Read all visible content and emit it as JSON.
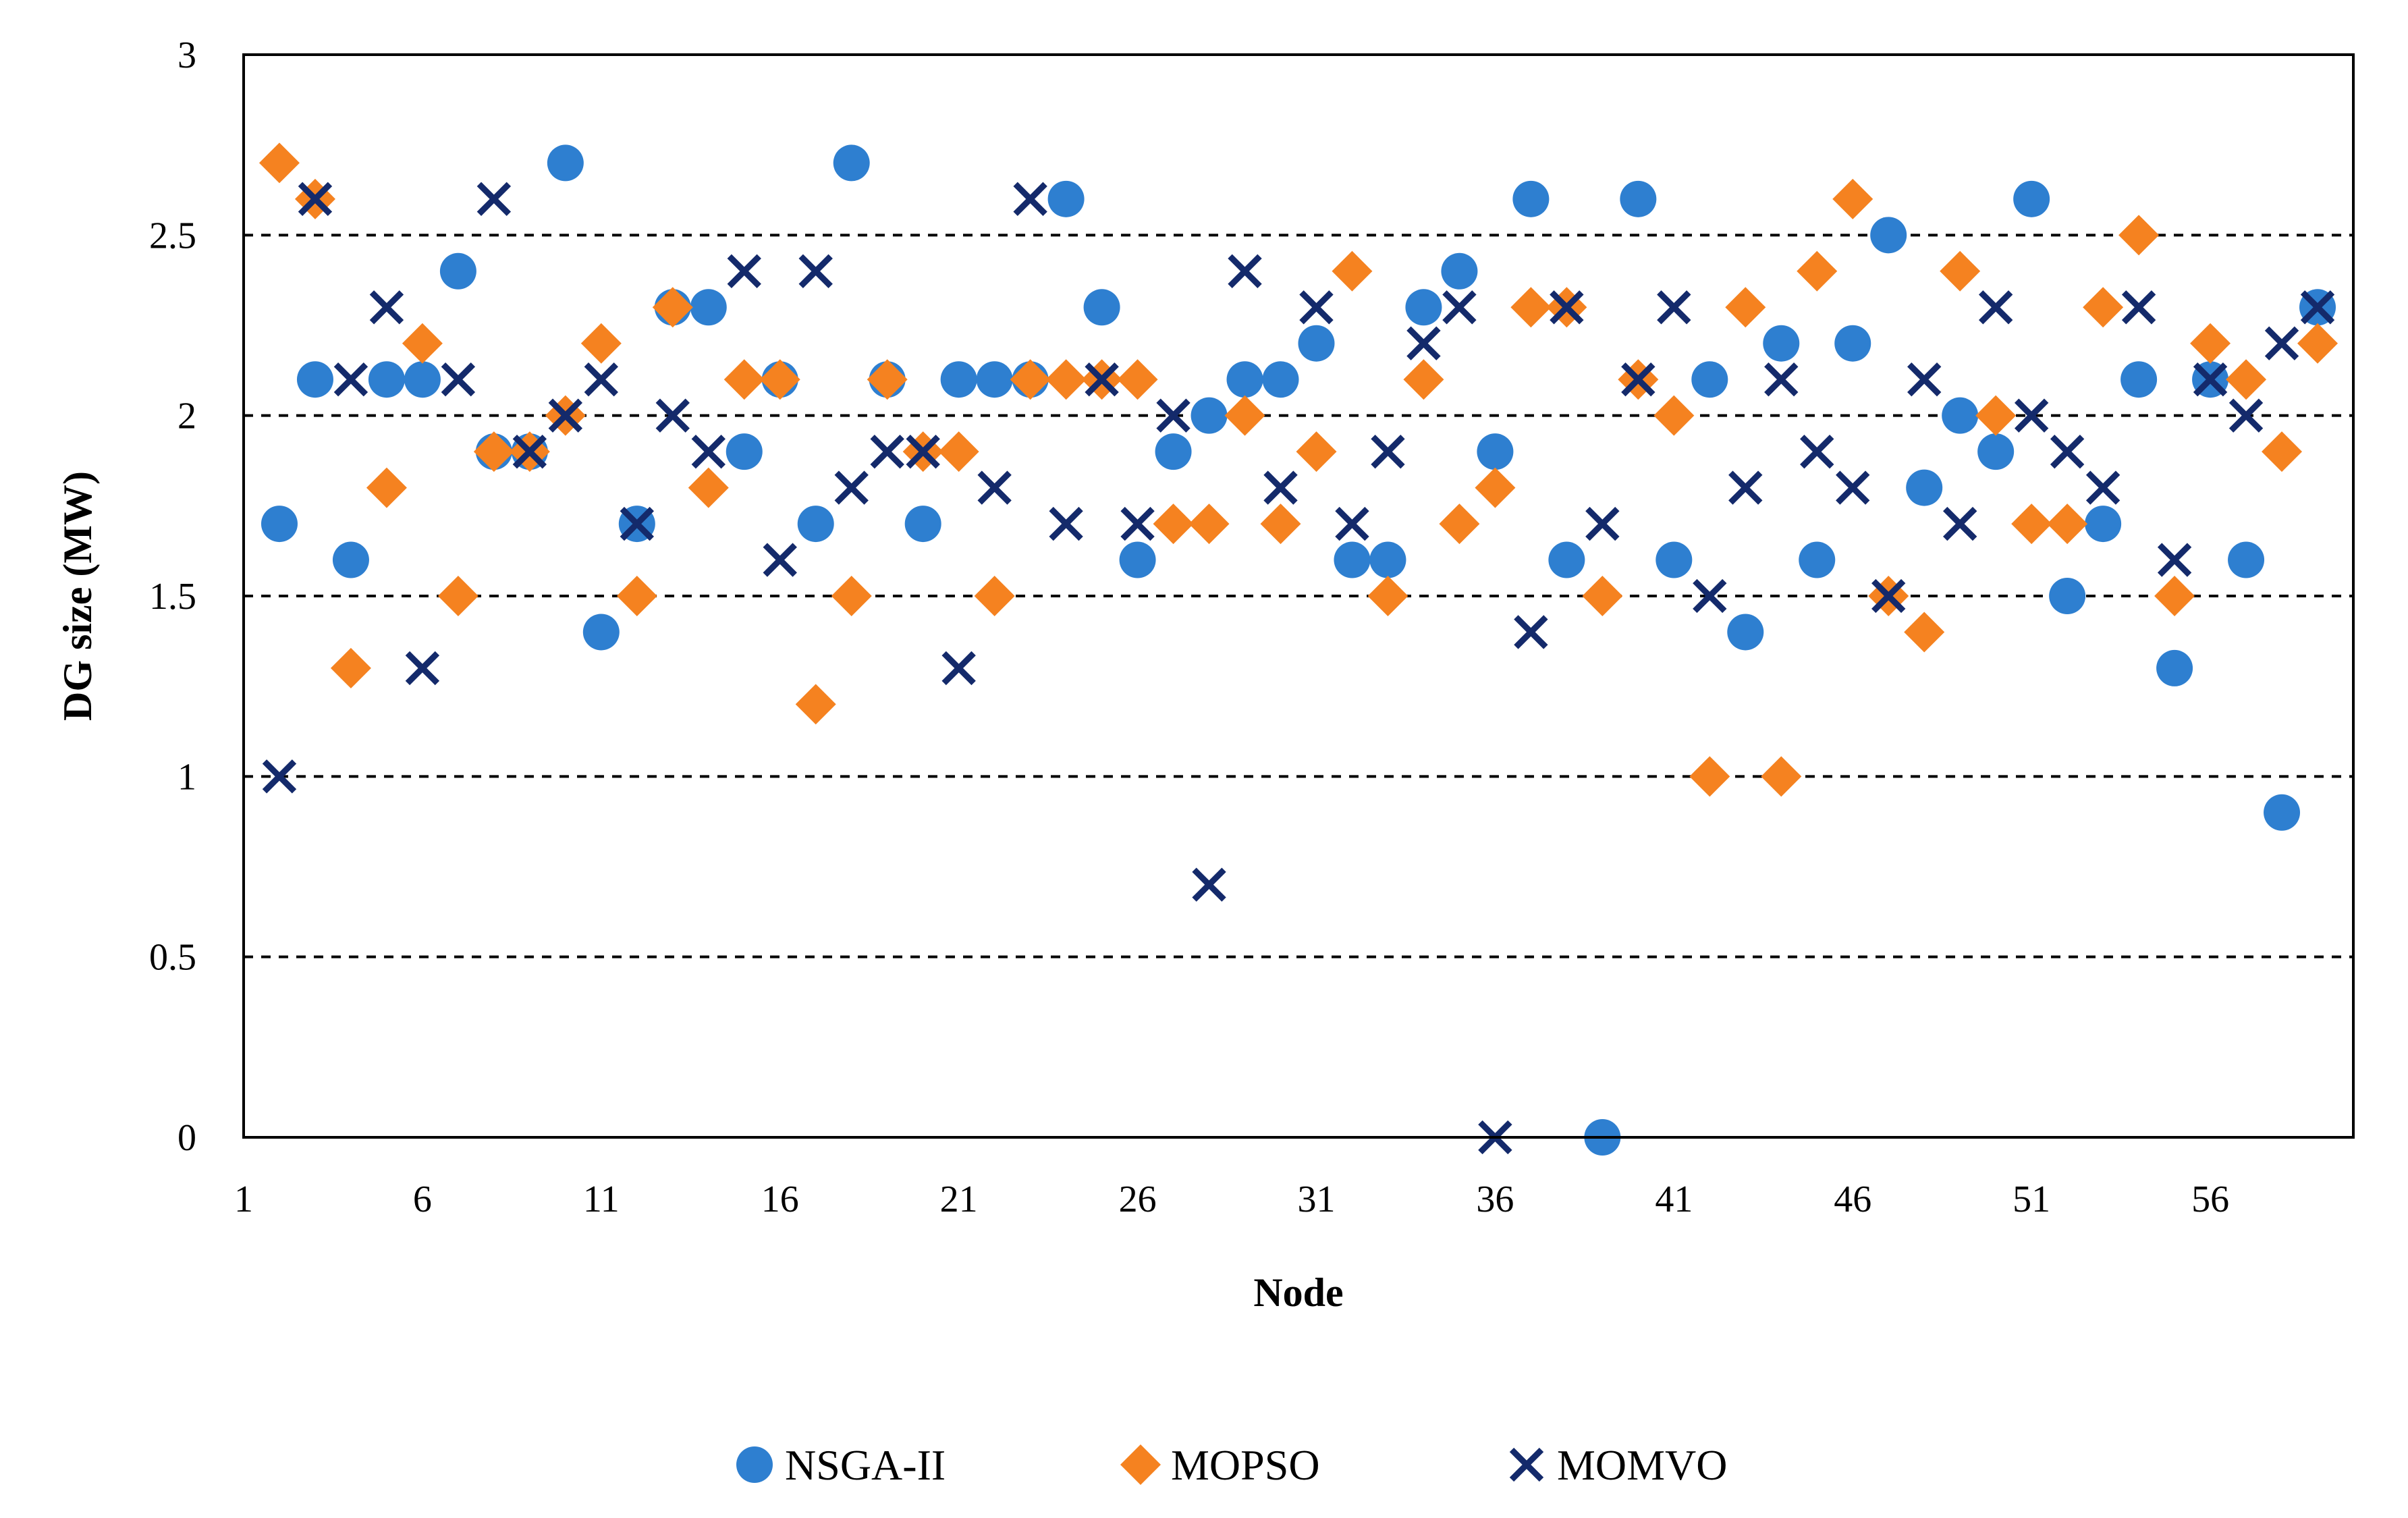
{
  "chart_data": {
    "type": "scatter",
    "title": "",
    "xlabel": "Node",
    "ylabel": "DG size (MW)",
    "xlim": [
      1,
      60
    ],
    "ylim": [
      0,
      3
    ],
    "xticks": [
      1,
      6,
      11,
      16,
      21,
      26,
      31,
      36,
      41,
      46,
      51,
      56
    ],
    "yticks": [
      0,
      0.5,
      1,
      1.5,
      2,
      2.5,
      3
    ],
    "ytick_labels": [
      "0",
      "0.5",
      "1",
      "1.5",
      "2",
      "2.5",
      "3"
    ],
    "gridlines": "horizontal dashed",
    "legend_position": "bottom",
    "x": [
      2,
      3,
      4,
      5,
      6,
      7,
      8,
      9,
      10,
      11,
      12,
      13,
      14,
      15,
      16,
      17,
      18,
      19,
      20,
      21,
      22,
      23,
      24,
      25,
      26,
      27,
      28,
      29,
      30,
      31,
      32,
      33,
      34,
      35,
      36,
      37,
      38,
      39,
      40,
      41,
      42,
      43,
      44,
      45,
      46,
      47,
      48,
      49,
      50,
      51,
      52,
      53,
      54,
      55,
      56,
      57,
      58,
      59
    ],
    "series": [
      {
        "name": "NSGA-II",
        "marker": "circle",
        "color": "#2e7fd0",
        "values": [
          1.7,
          2.1,
          1.6,
          2.1,
          2.1,
          2.4,
          1.9,
          1.9,
          2.7,
          1.4,
          1.7,
          2.3,
          2.3,
          1.9,
          2.1,
          1.7,
          2.7,
          2.1,
          1.7,
          2.1,
          2.1,
          2.1,
          2.6,
          2.3,
          1.6,
          1.9,
          2.0,
          2.1,
          2.1,
          2.2,
          1.6,
          1.6,
          2.3,
          2.4,
          1.9,
          2.6,
          1.6,
          0.0,
          2.6,
          1.6,
          2.1,
          1.4,
          2.2,
          1.6,
          2.2,
          2.5,
          1.8,
          2.0,
          1.9,
          2.6,
          1.5,
          1.7,
          2.1,
          1.3,
          2.1,
          1.6,
          0.9,
          2.3
        ]
      },
      {
        "name": "MOPSO",
        "marker": "diamond",
        "color": "#f58220",
        "values": [
          2.7,
          2.6,
          1.3,
          1.8,
          2.2,
          1.5,
          1.9,
          1.9,
          2.0,
          2.2,
          1.5,
          2.3,
          1.8,
          2.1,
          2.1,
          1.2,
          1.5,
          2.1,
          1.9,
          1.9,
          1.5,
          2.1,
          2.1,
          2.1,
          2.1,
          1.7,
          1.7,
          2.0,
          1.7,
          1.9,
          2.4,
          1.5,
          2.1,
          1.7,
          1.8,
          2.3,
          2.3,
          1.5,
          2.1,
          2.0,
          1.0,
          2.3,
          1.0,
          2.4,
          2.6,
          1.5,
          1.4,
          2.4,
          2.0,
          1.7,
          1.7,
          2.3,
          2.5,
          1.5,
          2.2,
          2.1,
          1.9,
          2.2
        ]
      },
      {
        "name": "MOMVO",
        "marker": "x",
        "color": "#142a6b",
        "values": [
          1.0,
          2.6,
          2.1,
          2.3,
          1.3,
          2.1,
          2.6,
          1.9,
          2.0,
          2.1,
          1.7,
          2.0,
          1.9,
          2.4,
          1.6,
          2.4,
          1.8,
          1.9,
          1.9,
          1.3,
          1.8,
          2.6,
          1.7,
          2.1,
          1.7,
          2.0,
          0.7,
          2.4,
          1.8,
          2.3,
          1.7,
          1.9,
          2.2,
          2.3,
          0.0,
          1.4,
          2.3,
          1.7,
          2.1,
          2.3,
          1.5,
          1.8,
          2.1,
          1.9,
          1.8,
          1.5,
          2.1,
          1.7,
          2.3,
          2.0,
          1.9,
          1.8,
          2.3,
          1.6,
          2.1,
          2.0,
          2.2,
          2.3
        ]
      }
    ]
  }
}
